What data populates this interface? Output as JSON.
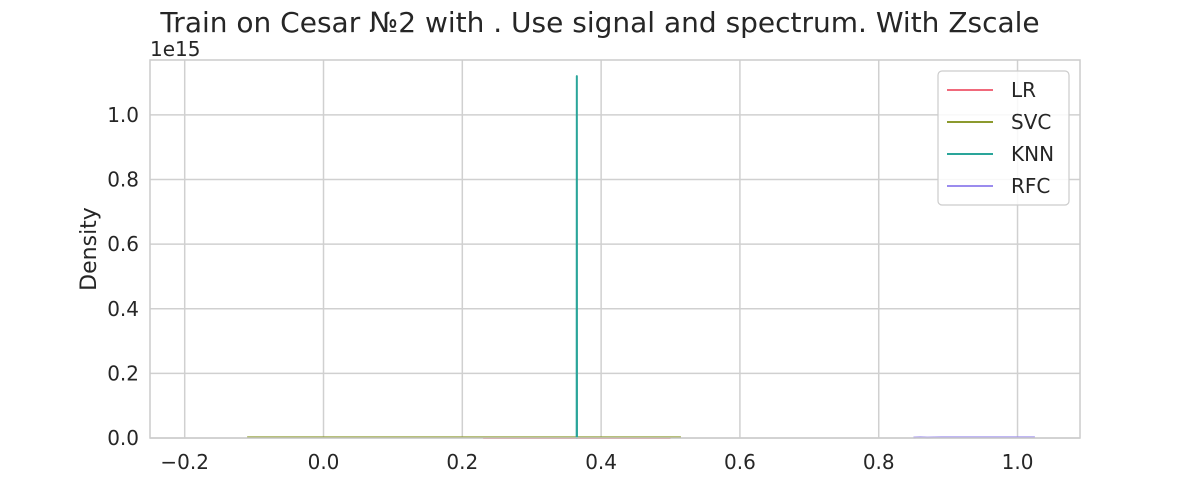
{
  "chart_data": {
    "type": "line",
    "title": "Train on Cesar №2 with . Use signal and spectrum. With Zscale",
    "xlabel": "",
    "ylabel": "Density",
    "y_offset_label": "1e15",
    "xlim": [
      -0.25,
      1.09
    ],
    "ylim": [
      0,
      1.17
    ],
    "x_ticks": [
      -0.2,
      0.0,
      0.2,
      0.4,
      0.6,
      0.8,
      1.0
    ],
    "x_tick_labels": [
      "−0.2",
      "0.0",
      "0.2",
      "0.4",
      "0.6",
      "0.8",
      "1.0"
    ],
    "y_ticks": [
      0.0,
      0.2,
      0.4,
      0.6,
      0.8,
      1.0
    ],
    "y_tick_labels": [
      "0.0",
      "0.2",
      "0.4",
      "0.6",
      "0.8",
      "1.0"
    ],
    "grid": true,
    "legend_position": "top-right",
    "series": [
      {
        "name": "LR",
        "color": "#f0697b",
        "x": [
          0.23,
          0.36,
          0.365,
          0.37,
          0.5
        ],
        "y": [
          0,
          0.0,
          0.0,
          0.0,
          0
        ]
      },
      {
        "name": "SVC",
        "color": "#8c9a2e",
        "x": [
          -0.11,
          0.2,
          0.365,
          0.515
        ],
        "y": [
          0.002,
          0.002,
          0.002,
          0.002
        ]
      },
      {
        "name": "KNN",
        "color": "#2aa59a",
        "x": [
          0.3645,
          0.3648,
          0.365,
          0.3652,
          0.3655
        ],
        "y": [
          0,
          0,
          1.12,
          0,
          0
        ]
      },
      {
        "name": "RFC",
        "color": "#9b8cee",
        "x": [
          0.85,
          0.86,
          0.87,
          0.89,
          0.95,
          1.025
        ],
        "y": [
          0.001,
          0.002,
          0.001,
          0.002,
          0.002,
          0.002
        ]
      }
    ]
  }
}
